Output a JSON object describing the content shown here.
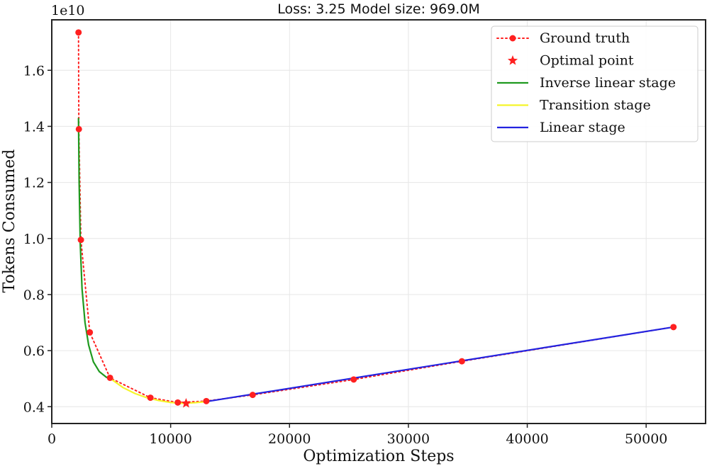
{
  "chart_data": {
    "type": "line",
    "title": "Loss: 3.25  Model size: 969.0M",
    "xlabel": "Optimization Steps",
    "ylabel": "Tokens Consumed",
    "y_multiplier": "1e10",
    "xlim": [
      0,
      55000
    ],
    "ylim": [
      0.34,
      1.78
    ],
    "x_ticks": [
      0,
      10000,
      20000,
      30000,
      40000,
      50000
    ],
    "x_tick_labels": [
      "0",
      "10000",
      "20000",
      "30000",
      "40000",
      "50000"
    ],
    "y_ticks": [
      0.4,
      0.6,
      0.8,
      1.0,
      1.2,
      1.4,
      1.6
    ],
    "y_tick_labels": [
      "0.4",
      "0.6",
      "0.8",
      "1.0",
      "1.2",
      "1.4",
      "1.6"
    ],
    "grid": true,
    "legend_position": "top-right",
    "series": [
      {
        "name": "Ground truth",
        "color": "#ff2020",
        "style": "dotted-with-markers",
        "x": [
          2250,
          2280,
          2450,
          3200,
          4900,
          8300,
          10600,
          13000,
          16900,
          25400,
          34500,
          52300
        ],
        "y": [
          1.735,
          1.39,
          0.995,
          0.665,
          0.503,
          0.432,
          0.415,
          0.42,
          0.442,
          0.497,
          0.562,
          0.684
        ]
      },
      {
        "name": "Optimal point",
        "color": "#ff2020",
        "style": "star-marker",
        "x": [
          11300
        ],
        "y": [
          0.412
        ]
      },
      {
        "name": "Inverse linear stage",
        "color": "#1f9a1f",
        "style": "line",
        "x": [
          2250,
          2300,
          2400,
          2550,
          2800,
          3100,
          3500,
          4000,
          4600,
          4950
        ],
        "y": [
          1.43,
          1.2,
          0.98,
          0.82,
          0.7,
          0.62,
          0.56,
          0.525,
          0.505,
          0.5
        ]
      },
      {
        "name": "Transition stage",
        "color": "#f5f52a",
        "style": "line",
        "x": [
          4950,
          6000,
          7000,
          8000,
          9000,
          10000,
          11000,
          12000,
          13000
        ],
        "y": [
          0.5,
          0.468,
          0.447,
          0.432,
          0.422,
          0.415,
          0.412,
          0.414,
          0.418
        ]
      },
      {
        "name": "Linear stage",
        "color": "#2323e0",
        "style": "line",
        "x": [
          13000,
          52300
        ],
        "y": [
          0.418,
          0.684
        ]
      }
    ]
  }
}
